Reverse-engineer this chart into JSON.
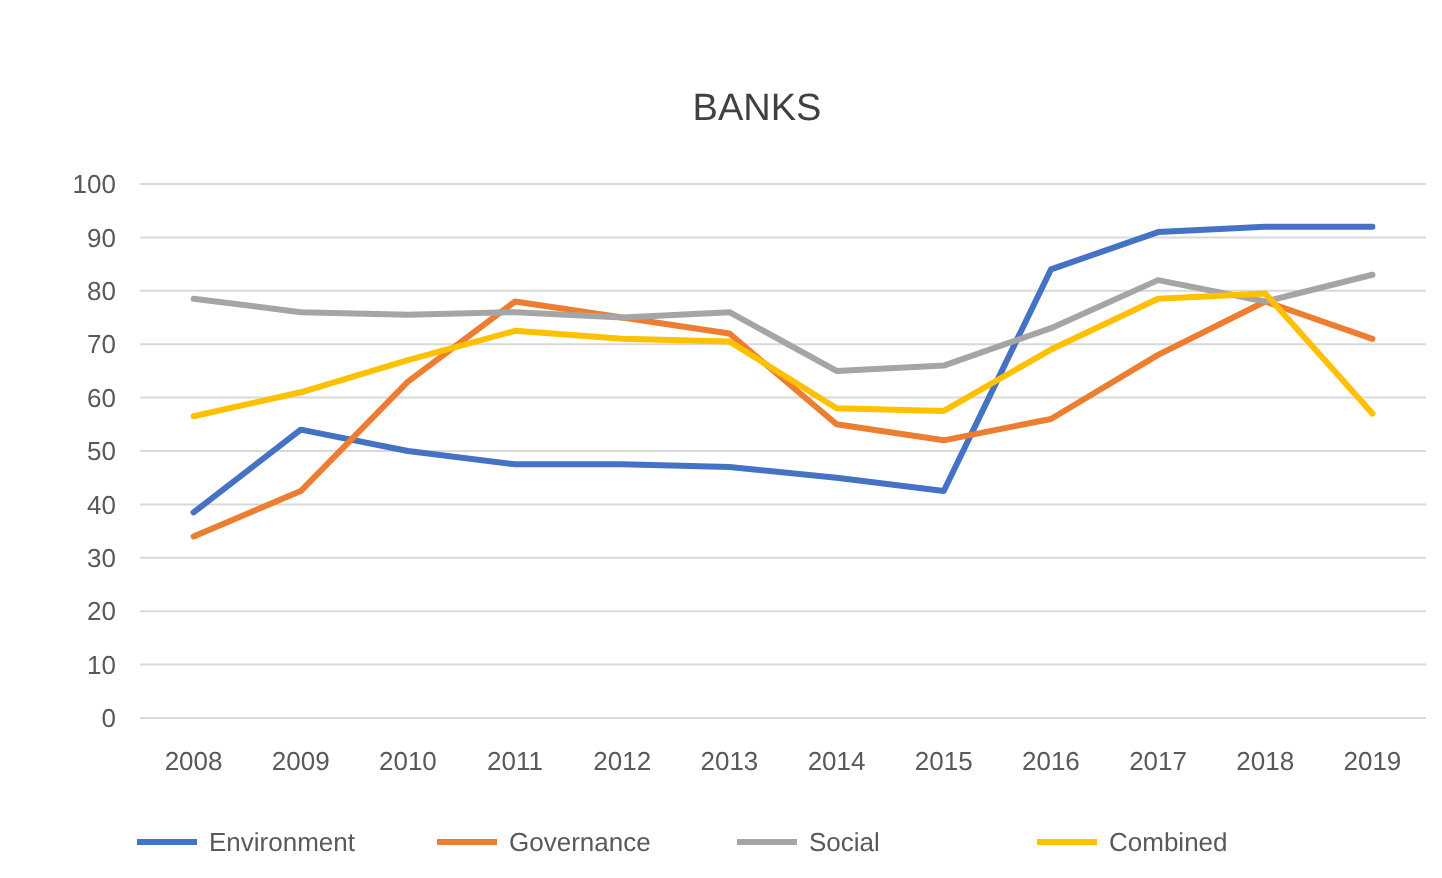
{
  "chart_data": {
    "type": "line",
    "title": "BANKS",
    "categories": [
      "2008",
      "2009",
      "2010",
      "2011",
      "2012",
      "2013",
      "2014",
      "2015",
      "2016",
      "2017",
      "2018",
      "2019"
    ],
    "series": [
      {
        "name": "Environment",
        "color": "#4472c4",
        "values": [
          38.5,
          54,
          50,
          47.5,
          47.5,
          47,
          45,
          42.5,
          84,
          91,
          92,
          92
        ]
      },
      {
        "name": "Governance",
        "color": "#ed7d31",
        "values": [
          34,
          42.5,
          63,
          78,
          75,
          72,
          55,
          52,
          56,
          68,
          78,
          71
        ]
      },
      {
        "name": "Social",
        "color": "#a5a5a5",
        "values": [
          78.5,
          76,
          75.5,
          76,
          75,
          76,
          65,
          66,
          73,
          82,
          78,
          83
        ]
      },
      {
        "name": "Combined",
        "color": "#ffc000",
        "values": [
          56.5,
          61,
          67,
          72.5,
          71,
          70.5,
          58,
          57.5,
          69,
          78.5,
          79.5,
          57
        ]
      }
    ],
    "ylim": [
      0,
      100
    ],
    "yticks": [
      0,
      10,
      20,
      30,
      40,
      50,
      60,
      70,
      80,
      90,
      100
    ],
    "grid": "y",
    "legend": "bottom",
    "marker": "none",
    "line_style": "solid"
  }
}
